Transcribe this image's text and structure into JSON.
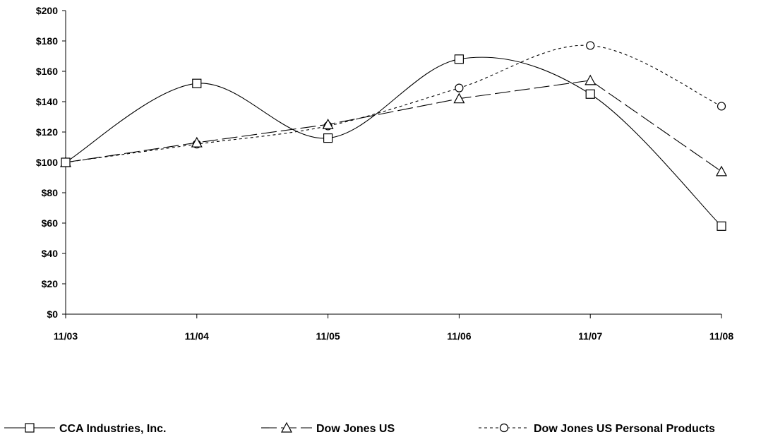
{
  "chart_data": {
    "type": "line",
    "categories": [
      "11/03",
      "11/04",
      "11/05",
      "11/06",
      "11/07",
      "11/08"
    ],
    "ylim": [
      0,
      200
    ],
    "yticks": [
      0,
      20,
      40,
      60,
      80,
      100,
      120,
      140,
      160,
      180,
      200
    ],
    "ytick_labels": [
      "$0",
      "$20",
      "$40",
      "$60",
      "$80",
      "$100",
      "$120",
      "$140",
      "$160",
      "$180",
      "$200"
    ],
    "grid": false,
    "legend_position": "bottom",
    "series": [
      {
        "name": "CCA Industries, Inc.",
        "marker": "square",
        "dash": "solid",
        "smooth": true,
        "values": [
          100,
          152,
          116,
          168,
          145,
          58
        ]
      },
      {
        "name": "Dow Jones US",
        "marker": "triangle",
        "dash": "long-dash",
        "values": [
          100,
          113,
          125,
          142,
          154,
          94
        ]
      },
      {
        "name": "Dow Jones US Personal Products",
        "marker": "circle",
        "dash": "short-dash",
        "smooth": true,
        "values": [
          100,
          112,
          124,
          149,
          177,
          137
        ]
      }
    ]
  }
}
